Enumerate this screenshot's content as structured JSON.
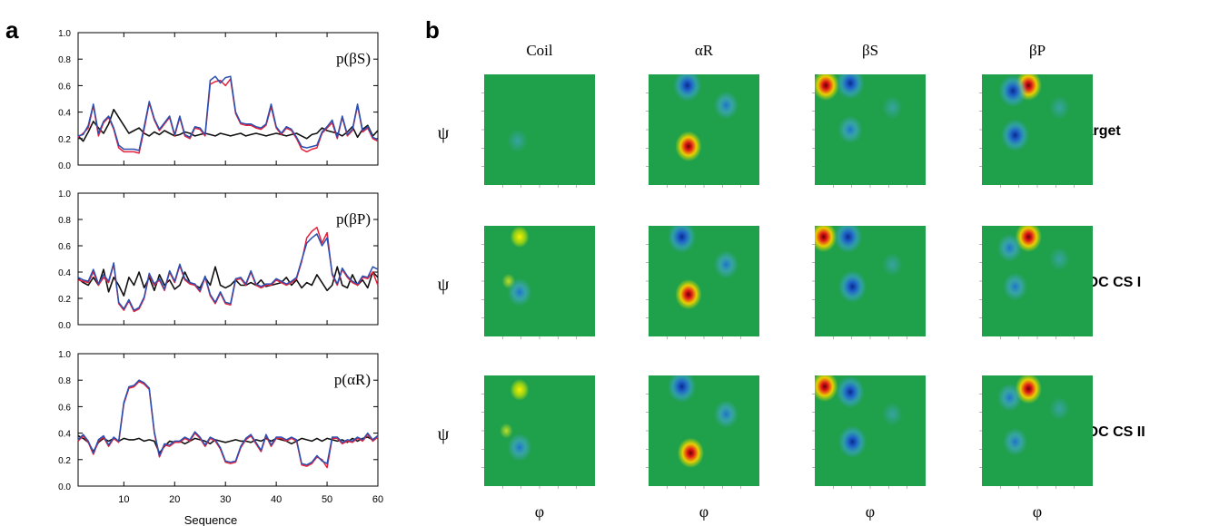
{
  "panel_a": {
    "letter": "a",
    "xlabel": "Sequence",
    "x_ticks": [
      10,
      20,
      30,
      40,
      50,
      60
    ],
    "y_ticks": [
      "0.0",
      "0.2",
      "0.4",
      "0.6",
      "0.8",
      "1.0"
    ]
  },
  "panel_b": {
    "letter": "b",
    "col_labels": [
      "Coil",
      "αR",
      "βS",
      "βP"
    ],
    "row_labels": [
      "Target",
      "RDC CS I",
      "RDC CS II"
    ],
    "psi": "ψ",
    "phi": "φ"
  },
  "colors": {
    "series_black": "#111111",
    "series_red": "#e8203a",
    "series_blue": "#2a4fb0",
    "map_background": "#1fa04a"
  },
  "chart_data": [
    {
      "type": "line",
      "label": "p(βS)",
      "xlim": [
        1,
        60
      ],
      "ylim": [
        0,
        1
      ],
      "x": [
        1,
        2,
        3,
        4,
        5,
        6,
        7,
        8,
        9,
        10,
        11,
        12,
        13,
        14,
        15,
        16,
        17,
        18,
        19,
        20,
        21,
        22,
        23,
        24,
        25,
        26,
        27,
        28,
        29,
        30,
        31,
        32,
        33,
        34,
        35,
        36,
        37,
        38,
        39,
        40,
        41,
        42,
        43,
        44,
        45,
        46,
        47,
        48,
        49,
        50,
        51,
        52,
        53,
        54,
        55,
        56,
        57,
        58,
        59,
        60
      ],
      "series": [
        {
          "values": [
            0.22,
            0.18,
            0.25,
            0.33,
            0.28,
            0.24,
            0.31,
            0.42,
            0.36,
            0.3,
            0.24,
            0.26,
            0.28,
            0.24,
            0.22,
            0.25,
            0.23,
            0.26,
            0.24,
            0.22,
            0.23,
            0.25,
            0.24,
            0.22,
            0.23,
            0.24,
            0.23,
            0.22,
            0.24,
            0.23,
            0.22,
            0.23,
            0.24,
            0.22,
            0.23,
            0.24,
            0.23,
            0.22,
            0.23,
            0.24,
            0.23,
            0.22,
            0.23,
            0.24,
            0.22,
            0.2,
            0.23,
            0.24,
            0.28,
            0.26,
            0.25,
            0.24,
            0.22,
            0.25,
            0.29,
            0.21,
            0.27,
            0.3,
            0.22,
            0.26
          ]
        },
        {
          "values": [
            0.21,
            0.24,
            0.28,
            0.45,
            0.22,
            0.32,
            0.36,
            0.27,
            0.13,
            0.1,
            0.1,
            0.1,
            0.09,
            0.27,
            0.47,
            0.34,
            0.26,
            0.31,
            0.36,
            0.22,
            0.36,
            0.22,
            0.2,
            0.28,
            0.27,
            0.22,
            0.61,
            0.63,
            0.64,
            0.6,
            0.65,
            0.39,
            0.31,
            0.3,
            0.3,
            0.28,
            0.27,
            0.3,
            0.44,
            0.28,
            0.23,
            0.28,
            0.26,
            0.2,
            0.12,
            0.1,
            0.12,
            0.13,
            0.24,
            0.28,
            0.32,
            0.2,
            0.36,
            0.22,
            0.26,
            0.45,
            0.25,
            0.28,
            0.2,
            0.18
          ]
        },
        {
          "values": [
            0.22,
            0.23,
            0.3,
            0.46,
            0.24,
            0.33,
            0.37,
            0.28,
            0.15,
            0.12,
            0.12,
            0.12,
            0.11,
            0.29,
            0.48,
            0.35,
            0.27,
            0.32,
            0.37,
            0.23,
            0.37,
            0.23,
            0.21,
            0.29,
            0.28,
            0.23,
            0.64,
            0.67,
            0.62,
            0.66,
            0.67,
            0.4,
            0.32,
            0.31,
            0.31,
            0.29,
            0.28,
            0.31,
            0.46,
            0.29,
            0.24,
            0.29,
            0.27,
            0.21,
            0.14,
            0.13,
            0.14,
            0.15,
            0.25,
            0.29,
            0.34,
            0.21,
            0.37,
            0.23,
            0.27,
            0.46,
            0.26,
            0.29,
            0.21,
            0.19
          ]
        }
      ]
    },
    {
      "type": "line",
      "label": "p(βP)",
      "xlim": [
        1,
        60
      ],
      "ylim": [
        0,
        1
      ],
      "x": [
        1,
        2,
        3,
        4,
        5,
        6,
        7,
        8,
        9,
        10,
        11,
        12,
        13,
        14,
        15,
        16,
        17,
        18,
        19,
        20,
        21,
        22,
        23,
        24,
        25,
        26,
        27,
        28,
        29,
        30,
        31,
        32,
        33,
        34,
        35,
        36,
        37,
        38,
        39,
        40,
        41,
        42,
        43,
        44,
        45,
        46,
        47,
        48,
        49,
        50,
        51,
        52,
        53,
        54,
        55,
        56,
        57,
        58,
        59,
        60
      ],
      "series": [
        {
          "values": [
            0.35,
            0.32,
            0.3,
            0.36,
            0.3,
            0.42,
            0.25,
            0.36,
            0.3,
            0.22,
            0.36,
            0.3,
            0.4,
            0.28,
            0.36,
            0.26,
            0.38,
            0.3,
            0.34,
            0.27,
            0.3,
            0.4,
            0.32,
            0.3,
            0.28,
            0.36,
            0.3,
            0.44,
            0.3,
            0.28,
            0.3,
            0.34,
            0.3,
            0.3,
            0.32,
            0.3,
            0.34,
            0.29,
            0.3,
            0.31,
            0.32,
            0.36,
            0.3,
            0.34,
            0.28,
            0.32,
            0.3,
            0.38,
            0.32,
            0.26,
            0.3,
            0.44,
            0.3,
            0.28,
            0.38,
            0.3,
            0.34,
            0.28,
            0.4,
            0.36
          ]
        },
        {
          "values": [
            0.34,
            0.33,
            0.32,
            0.4,
            0.3,
            0.36,
            0.32,
            0.46,
            0.16,
            0.11,
            0.18,
            0.1,
            0.12,
            0.2,
            0.38,
            0.3,
            0.34,
            0.26,
            0.4,
            0.32,
            0.45,
            0.34,
            0.31,
            0.3,
            0.25,
            0.36,
            0.22,
            0.16,
            0.24,
            0.16,
            0.15,
            0.34,
            0.35,
            0.3,
            0.4,
            0.3,
            0.28,
            0.3,
            0.3,
            0.34,
            0.32,
            0.3,
            0.32,
            0.35,
            0.48,
            0.66,
            0.71,
            0.74,
            0.62,
            0.7,
            0.38,
            0.3,
            0.42,
            0.36,
            0.32,
            0.3,
            0.36,
            0.35,
            0.4,
            0.3
          ]
        },
        {
          "values": [
            0.36,
            0.34,
            0.33,
            0.42,
            0.31,
            0.38,
            0.33,
            0.47,
            0.17,
            0.12,
            0.19,
            0.11,
            0.13,
            0.21,
            0.39,
            0.31,
            0.35,
            0.27,
            0.41,
            0.33,
            0.46,
            0.35,
            0.32,
            0.31,
            0.26,
            0.37,
            0.23,
            0.17,
            0.25,
            0.17,
            0.16,
            0.35,
            0.36,
            0.31,
            0.41,
            0.31,
            0.29,
            0.31,
            0.31,
            0.35,
            0.33,
            0.31,
            0.33,
            0.36,
            0.49,
            0.62,
            0.66,
            0.69,
            0.6,
            0.66,
            0.39,
            0.31,
            0.43,
            0.37,
            0.33,
            0.31,
            0.37,
            0.36,
            0.44,
            0.42
          ]
        }
      ]
    },
    {
      "type": "line",
      "label": "p(αR)",
      "xlim": [
        1,
        60
      ],
      "ylim": [
        0,
        1
      ],
      "x": [
        1,
        2,
        3,
        4,
        5,
        6,
        7,
        8,
        9,
        10,
        11,
        12,
        13,
        14,
        15,
        16,
        17,
        18,
        19,
        20,
        21,
        22,
        23,
        24,
        25,
        26,
        27,
        28,
        29,
        30,
        31,
        32,
        33,
        34,
        35,
        36,
        37,
        38,
        39,
        40,
        41,
        42,
        43,
        44,
        45,
        46,
        47,
        48,
        49,
        50,
        51,
        52,
        53,
        54,
        55,
        56,
        57,
        58,
        59,
        60
      ],
      "series": [
        {
          "values": [
            0.38,
            0.36,
            0.33,
            0.26,
            0.33,
            0.36,
            0.34,
            0.36,
            0.34,
            0.36,
            0.35,
            0.35,
            0.36,
            0.34,
            0.35,
            0.34,
            0.25,
            0.3,
            0.34,
            0.33,
            0.34,
            0.32,
            0.34,
            0.36,
            0.35,
            0.34,
            0.32,
            0.35,
            0.34,
            0.33,
            0.34,
            0.35,
            0.34,
            0.34,
            0.33,
            0.35,
            0.34,
            0.36,
            0.34,
            0.36,
            0.35,
            0.34,
            0.32,
            0.34,
            0.36,
            0.35,
            0.34,
            0.36,
            0.34,
            0.36,
            0.35,
            0.34,
            0.35,
            0.33,
            0.36,
            0.34,
            0.36,
            0.37,
            0.35,
            0.38
          ]
        },
        {
          "values": [
            0.34,
            0.38,
            0.33,
            0.24,
            0.34,
            0.37,
            0.3,
            0.36,
            0.33,
            0.62,
            0.74,
            0.75,
            0.79,
            0.77,
            0.73,
            0.4,
            0.22,
            0.31,
            0.3,
            0.33,
            0.33,
            0.36,
            0.34,
            0.4,
            0.36,
            0.3,
            0.36,
            0.34,
            0.28,
            0.18,
            0.17,
            0.18,
            0.29,
            0.35,
            0.38,
            0.32,
            0.26,
            0.38,
            0.3,
            0.36,
            0.36,
            0.34,
            0.36,
            0.34,
            0.16,
            0.15,
            0.17,
            0.22,
            0.2,
            0.14,
            0.36,
            0.36,
            0.32,
            0.34,
            0.33,
            0.36,
            0.34,
            0.39,
            0.34,
            0.37
          ]
        },
        {
          "values": [
            0.35,
            0.39,
            0.34,
            0.25,
            0.35,
            0.38,
            0.31,
            0.37,
            0.34,
            0.63,
            0.75,
            0.76,
            0.8,
            0.78,
            0.74,
            0.41,
            0.23,
            0.32,
            0.31,
            0.34,
            0.34,
            0.37,
            0.35,
            0.41,
            0.37,
            0.31,
            0.37,
            0.35,
            0.29,
            0.19,
            0.18,
            0.19,
            0.3,
            0.36,
            0.39,
            0.33,
            0.27,
            0.39,
            0.31,
            0.37,
            0.37,
            0.35,
            0.37,
            0.35,
            0.17,
            0.16,
            0.18,
            0.23,
            0.19,
            0.17,
            0.37,
            0.37,
            0.33,
            0.35,
            0.34,
            0.37,
            0.35,
            0.4,
            0.35,
            0.38
          ]
        }
      ]
    },
    {
      "type": "heatmap",
      "columns": [
        "Coil",
        "αR",
        "βS",
        "βP"
      ],
      "rows": [
        "Target",
        "RDC CS I",
        "RDC CS II"
      ],
      "cells": [
        {
          "row": "Target",
          "col": "Coil",
          "blobs": [
            {
              "phi": 0.3,
              "psi": 0.4,
              "level": "weak-blue"
            }
          ]
        },
        {
          "row": "Target",
          "col": "αR",
          "blobs": [
            {
              "phi": 0.35,
              "psi": 0.9,
              "level": "dark-blue"
            },
            {
              "phi": 0.36,
              "psi": 0.35,
              "level": "red-peak"
            },
            {
              "phi": 0.7,
              "psi": 0.72,
              "level": "light-blue"
            }
          ]
        },
        {
          "row": "Target",
          "col": "βS",
          "blobs": [
            {
              "phi": 0.1,
              "psi": 0.9,
              "level": "red-peak"
            },
            {
              "phi": 0.32,
              "psi": 0.92,
              "level": "dark-blue"
            },
            {
              "phi": 0.32,
              "psi": 0.5,
              "level": "light-blue"
            },
            {
              "phi": 0.7,
              "psi": 0.7,
              "level": "weak-blue"
            }
          ]
        },
        {
          "row": "Target",
          "col": "βP",
          "blobs": [
            {
              "phi": 0.42,
              "psi": 0.9,
              "level": "red-peak"
            },
            {
              "phi": 0.28,
              "psi": 0.85,
              "level": "dark-blue"
            },
            {
              "phi": 0.3,
              "psi": 0.45,
              "level": "dark-blue"
            },
            {
              "phi": 0.7,
              "psi": 0.7,
              "level": "weak-blue"
            }
          ]
        },
        {
          "row": "RDC CS I",
          "col": "Coil",
          "blobs": [
            {
              "phi": 0.32,
              "psi": 0.9,
              "level": "yellow"
            },
            {
              "phi": 0.22,
              "psi": 0.5,
              "level": "weak-yellow"
            },
            {
              "phi": 0.32,
              "psi": 0.4,
              "level": "light-blue"
            }
          ]
        },
        {
          "row": "RDC CS I",
          "col": "αR",
          "blobs": [
            {
              "phi": 0.3,
              "psi": 0.9,
              "level": "dark-blue"
            },
            {
              "phi": 0.36,
              "psi": 0.38,
              "level": "red-peak"
            },
            {
              "phi": 0.7,
              "psi": 0.65,
              "level": "light-blue"
            }
          ]
        },
        {
          "row": "RDC CS I",
          "col": "βS",
          "blobs": [
            {
              "phi": 0.08,
              "psi": 0.9,
              "level": "red-peak"
            },
            {
              "phi": 0.3,
              "psi": 0.9,
              "level": "dark-blue"
            },
            {
              "phi": 0.34,
              "psi": 0.45,
              "level": "dark-blue"
            },
            {
              "phi": 0.7,
              "psi": 0.65,
              "level": "weak-blue"
            }
          ]
        },
        {
          "row": "RDC CS I",
          "col": "βP",
          "blobs": [
            {
              "phi": 0.42,
              "psi": 0.9,
              "level": "red-peak"
            },
            {
              "phi": 0.25,
              "psi": 0.8,
              "level": "light-blue"
            },
            {
              "phi": 0.3,
              "psi": 0.45,
              "level": "light-blue"
            },
            {
              "phi": 0.7,
              "psi": 0.7,
              "level": "weak-blue"
            }
          ]
        },
        {
          "row": "RDC CS II",
          "col": "Coil",
          "blobs": [
            {
              "phi": 0.32,
              "psi": 0.87,
              "level": "yellow"
            },
            {
              "phi": 0.2,
              "psi": 0.5,
              "level": "weak-yellow"
            },
            {
              "phi": 0.32,
              "psi": 0.35,
              "level": "light-blue"
            }
          ]
        },
        {
          "row": "RDC CS II",
          "col": "αR",
          "blobs": [
            {
              "phi": 0.3,
              "psi": 0.9,
              "level": "dark-blue"
            },
            {
              "phi": 0.38,
              "psi": 0.3,
              "level": "red-peak"
            },
            {
              "phi": 0.7,
              "psi": 0.65,
              "level": "light-blue"
            }
          ]
        },
        {
          "row": "RDC CS II",
          "col": "βS",
          "blobs": [
            {
              "phi": 0.09,
              "psi": 0.9,
              "level": "red-peak"
            },
            {
              "phi": 0.32,
              "psi": 0.85,
              "level": "dark-blue"
            },
            {
              "phi": 0.34,
              "psi": 0.4,
              "level": "dark-blue"
            },
            {
              "phi": 0.7,
              "psi": 0.65,
              "level": "weak-blue"
            }
          ]
        },
        {
          "row": "RDC CS II",
          "col": "βP",
          "blobs": [
            {
              "phi": 0.42,
              "psi": 0.88,
              "level": "red-peak"
            },
            {
              "phi": 0.25,
              "psi": 0.8,
              "level": "light-blue"
            },
            {
              "phi": 0.3,
              "psi": 0.4,
              "level": "light-blue"
            },
            {
              "phi": 0.7,
              "psi": 0.7,
              "level": "weak-blue"
            }
          ]
        }
      ]
    }
  ]
}
